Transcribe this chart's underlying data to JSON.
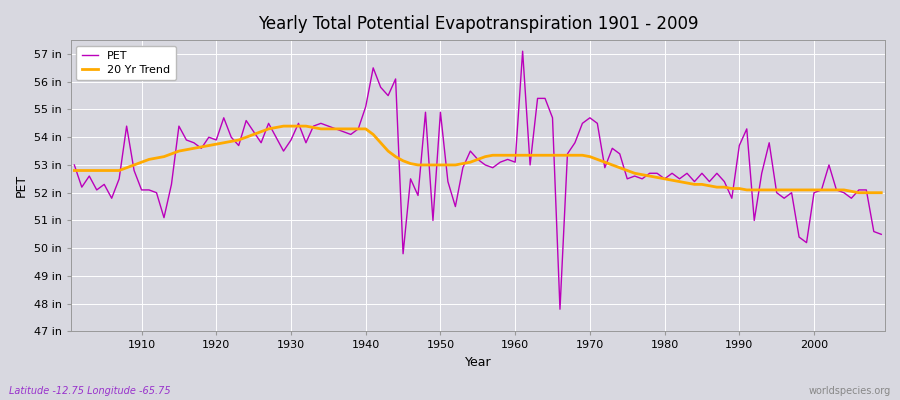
{
  "title": "Yearly Total Potential Evapotranspiration 1901 - 2009",
  "xlabel": "Year",
  "ylabel": "PET",
  "subtitle": "Latitude -12.75 Longitude -65.75",
  "watermark": "worldspecies.org",
  "bg_color": "#d8d8e0",
  "plot_bg_color": "#d8d8e0",
  "pet_color": "#bb00bb",
  "trend_color": "#ffaa00",
  "ylim": [
    47,
    57.5
  ],
  "yticks": [
    47,
    48,
    49,
    50,
    51,
    52,
    53,
    54,
    55,
    56,
    57
  ],
  "years": [
    1901,
    1902,
    1903,
    1904,
    1905,
    1906,
    1907,
    1908,
    1909,
    1910,
    1911,
    1912,
    1913,
    1914,
    1915,
    1916,
    1917,
    1918,
    1919,
    1920,
    1921,
    1922,
    1923,
    1924,
    1925,
    1926,
    1927,
    1928,
    1929,
    1930,
    1931,
    1932,
    1933,
    1934,
    1935,
    1936,
    1937,
    1938,
    1939,
    1940,
    1941,
    1942,
    1943,
    1944,
    1945,
    1946,
    1947,
    1948,
    1949,
    1950,
    1951,
    1952,
    1953,
    1954,
    1955,
    1956,
    1957,
    1958,
    1959,
    1960,
    1961,
    1962,
    1963,
    1964,
    1965,
    1966,
    1967,
    1968,
    1969,
    1970,
    1971,
    1972,
    1973,
    1974,
    1975,
    1976,
    1977,
    1978,
    1979,
    1980,
    1981,
    1982,
    1983,
    1984,
    1985,
    1986,
    1987,
    1988,
    1989,
    1990,
    1991,
    1992,
    1993,
    1994,
    1995,
    1996,
    1997,
    1998,
    1999,
    2000,
    2001,
    2002,
    2003,
    2004,
    2005,
    2006,
    2007,
    2008,
    2009
  ],
  "pet": [
    53.0,
    52.2,
    52.6,
    52.1,
    52.3,
    51.8,
    52.5,
    54.4,
    52.8,
    52.1,
    52.1,
    52.0,
    51.1,
    52.3,
    54.4,
    53.9,
    53.8,
    53.6,
    54.0,
    53.9,
    54.7,
    54.0,
    53.7,
    54.6,
    54.2,
    53.8,
    54.5,
    54.0,
    53.5,
    53.9,
    54.5,
    53.8,
    54.4,
    54.5,
    54.4,
    54.3,
    54.2,
    54.1,
    54.3,
    55.1,
    56.5,
    55.8,
    55.5,
    56.1,
    49.8,
    52.5,
    51.9,
    54.9,
    51.0,
    54.9,
    52.4,
    51.5,
    52.9,
    53.5,
    53.2,
    53.0,
    52.9,
    53.1,
    53.2,
    53.1,
    57.1,
    53.0,
    55.4,
    55.4,
    54.7,
    47.8,
    53.4,
    53.8,
    54.5,
    54.7,
    54.5,
    52.9,
    53.6,
    53.4,
    52.5,
    52.6,
    52.5,
    52.7,
    52.7,
    52.5,
    52.7,
    52.5,
    52.7,
    52.4,
    52.7,
    52.4,
    52.7,
    52.4,
    51.8,
    53.7,
    54.3,
    51.0,
    52.7,
    53.8,
    52.0,
    51.8,
    52.0,
    50.4,
    50.2,
    52.0,
    52.1,
    53.0,
    52.1,
    52.0,
    51.8,
    52.1,
    52.1,
    50.6,
    50.5
  ],
  "trend": [
    52.8,
    52.8,
    52.8,
    52.8,
    52.8,
    52.8,
    52.8,
    52.9,
    53.0,
    53.1,
    53.2,
    53.25,
    53.3,
    53.4,
    53.5,
    53.55,
    53.6,
    53.65,
    53.7,
    53.75,
    53.8,
    53.85,
    53.9,
    54.0,
    54.1,
    54.2,
    54.3,
    54.35,
    54.4,
    54.4,
    54.4,
    54.4,
    54.35,
    54.3,
    54.3,
    54.3,
    54.3,
    54.3,
    54.3,
    54.3,
    54.1,
    53.8,
    53.5,
    53.3,
    53.15,
    53.05,
    53.0,
    53.0,
    53.0,
    53.0,
    53.0,
    53.0,
    53.05,
    53.1,
    53.2,
    53.3,
    53.35,
    53.35,
    53.35,
    53.35,
    53.35,
    53.35,
    53.35,
    53.35,
    53.35,
    53.35,
    53.35,
    53.35,
    53.35,
    53.3,
    53.2,
    53.1,
    53.0,
    52.9,
    52.8,
    52.7,
    52.65,
    52.6,
    52.55,
    52.5,
    52.45,
    52.4,
    52.35,
    52.3,
    52.3,
    52.25,
    52.2,
    52.2,
    52.15,
    52.15,
    52.1,
    52.1,
    52.1,
    52.1,
    52.1,
    52.1,
    52.1,
    52.1,
    52.1,
    52.1,
    52.1,
    52.1,
    52.1,
    52.1,
    52.05,
    52.0,
    52.0,
    52.0,
    52.0
  ]
}
